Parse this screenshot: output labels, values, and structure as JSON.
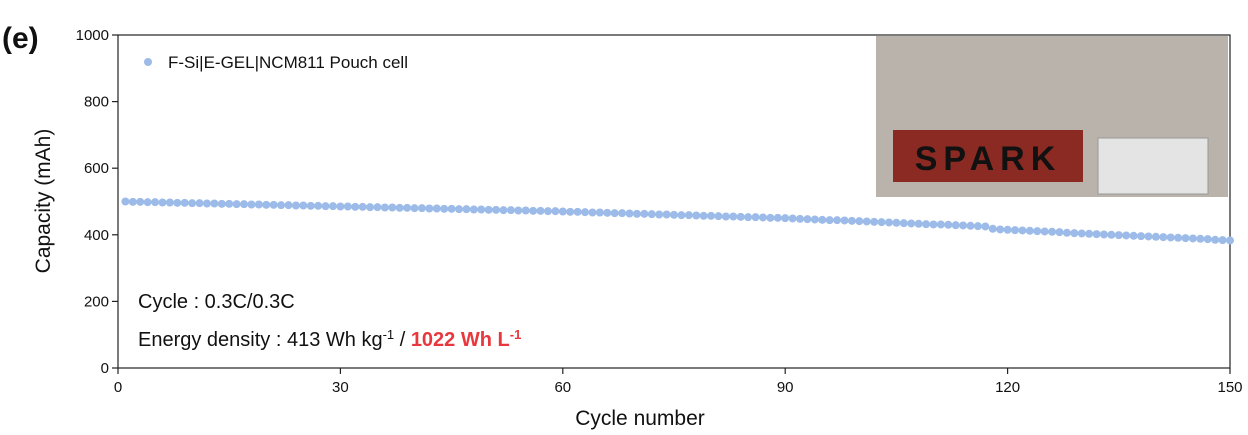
{
  "chart_data": {
    "type": "scatter",
    "panel_label": "(e)",
    "xlabel": "Cycle number",
    "ylabel": "Capacity (mAh)",
    "xlim": [
      0,
      150
    ],
    "xticks": [
      0,
      30,
      60,
      90,
      120,
      150
    ],
    "ylim": [
      0,
      1000
    ],
    "yticks": [
      0,
      200,
      400,
      600,
      800,
      1000
    ],
    "legend_position": "upper left",
    "inset_text": "SPARK",
    "annotations": [
      [
        {
          "text": "Cycle : 0.3C/0.3C"
        }
      ],
      [
        {
          "text": "Energy density : 413 Wh kg"
        },
        {
          "text": "-1",
          "sup": true
        },
        {
          "text": " / "
        },
        {
          "text": "1022 Wh L",
          "color": "#e8383d",
          "bold": true
        },
        {
          "text": "-1",
          "sup": true,
          "color": "#e8383d",
          "bold": true
        }
      ]
    ],
    "x": [
      1,
      2,
      3,
      4,
      5,
      6,
      7,
      8,
      9,
      10,
      11,
      12,
      13,
      14,
      15,
      16,
      17,
      18,
      19,
      20,
      21,
      22,
      23,
      24,
      25,
      26,
      27,
      28,
      29,
      30,
      31,
      32,
      33,
      34,
      35,
      36,
      37,
      38,
      39,
      40,
      41,
      42,
      43,
      44,
      45,
      46,
      47,
      48,
      49,
      50,
      51,
      52,
      53,
      54,
      55,
      56,
      57,
      58,
      59,
      60,
      61,
      62,
      63,
      64,
      65,
      66,
      67,
      68,
      69,
      70,
      71,
      72,
      73,
      74,
      75,
      76,
      77,
      78,
      79,
      80,
      81,
      82,
      83,
      84,
      85,
      86,
      87,
      88,
      89,
      90,
      91,
      92,
      93,
      94,
      95,
      96,
      97,
      98,
      99,
      100,
      101,
      102,
      103,
      104,
      105,
      106,
      107,
      108,
      109,
      110,
      111,
      112,
      113,
      114,
      115,
      116,
      117,
      118,
      119,
      120,
      121,
      122,
      123,
      124,
      125,
      126,
      127,
      128,
      129,
      130,
      131,
      132,
      133,
      134,
      135,
      136,
      137,
      138,
      139,
      140,
      141,
      142,
      143,
      144,
      145,
      146,
      147,
      148,
      149,
      150
    ],
    "series": [
      {
        "name": "F-Si|E-GEL|NCM811 Pouch cell",
        "color": "#9dbbe8",
        "values": [
          500,
          499,
          499,
          498,
          498,
          497,
          497,
          496,
          496,
          495,
          495,
          494,
          494,
          493,
          493,
          492,
          492,
          491,
          491,
          490,
          490,
          489,
          489,
          488,
          488,
          487,
          487,
          486,
          486,
          485,
          485,
          484,
          484,
          483,
          483,
          482,
          482,
          481,
          481,
          480,
          480,
          479,
          479,
          478,
          478,
          477,
          477,
          476,
          476,
          475,
          475,
          474,
          474,
          473,
          473,
          472,
          472,
          471,
          471,
          470,
          469,
          469,
          468,
          467,
          467,
          466,
          465,
          465,
          464,
          463,
          463,
          462,
          461,
          461,
          460,
          459,
          459,
          458,
          457,
          457,
          456,
          455,
          455,
          454,
          453,
          453,
          452,
          451,
          451,
          450,
          449,
          448,
          447,
          446,
          445,
          444,
          444,
          443,
          442,
          441,
          440,
          439,
          438,
          437,
          436,
          435,
          434,
          433,
          432,
          431,
          431,
          430,
          429,
          428,
          427,
          426,
          425,
          418,
          416,
          415,
          414,
          413,
          412,
          411,
          410,
          409,
          408,
          406,
          405,
          404,
          403,
          402,
          401,
          400,
          399,
          398,
          397,
          396,
          395,
          394,
          393,
          392,
          391,
          390,
          389,
          388,
          387,
          385,
          384,
          383
        ]
      }
    ]
  }
}
